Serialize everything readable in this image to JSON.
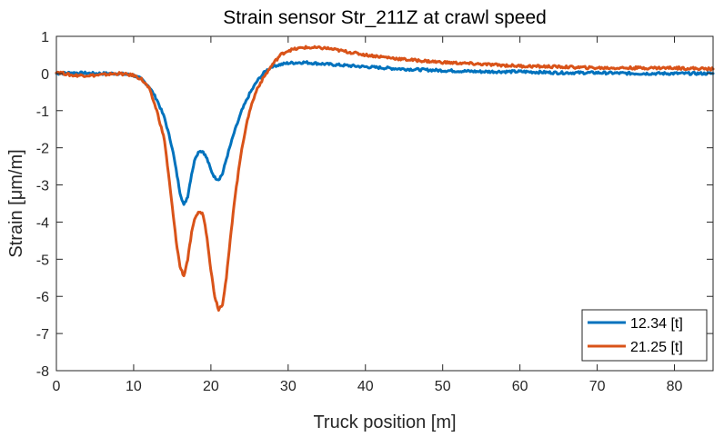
{
  "chart_data": {
    "type": "line",
    "title": "Strain sensor Str_211Z at crawl speed",
    "xlabel": "Truck position [m]",
    "ylabel": "Strain [μm/m]",
    "xlim": [
      0,
      85
    ],
    "ylim": [
      -8,
      1
    ],
    "xticks": [
      0,
      10,
      20,
      30,
      40,
      50,
      60,
      70,
      80
    ],
    "yticks": [
      -8,
      -7,
      -6,
      -5,
      -4,
      -3,
      -2,
      -1,
      0,
      1
    ],
    "grid": false,
    "legend_position": "bottom-right",
    "series": [
      {
        "name": "12.34 [t]",
        "color": "#0072BD",
        "x": [
          0,
          2,
          5,
          8,
          10,
          11,
          12,
          13,
          14,
          15,
          15.5,
          16,
          16.5,
          17,
          17.5,
          18,
          18.5,
          19,
          19.5,
          20,
          20.5,
          21,
          21.5,
          22,
          23,
          24,
          25,
          26,
          27,
          28,
          30,
          32,
          35,
          40,
          45,
          50,
          55,
          60,
          65,
          70,
          75,
          80,
          85
        ],
        "y": [
          0.0,
          0.02,
          0.0,
          0.0,
          -0.05,
          -0.15,
          -0.35,
          -0.7,
          -1.2,
          -2.0,
          -2.6,
          -3.2,
          -3.55,
          -3.3,
          -2.7,
          -2.25,
          -2.08,
          -2.1,
          -2.3,
          -2.6,
          -2.8,
          -2.85,
          -2.7,
          -2.3,
          -1.6,
          -1.0,
          -0.55,
          -0.2,
          0.05,
          0.2,
          0.28,
          0.3,
          0.25,
          0.18,
          0.12,
          0.08,
          0.05,
          0.05,
          0.02,
          0.02,
          0.0,
          0.0,
          0.0
        ]
      },
      {
        "name": "21.25 [t]",
        "color": "#D95319",
        "x": [
          0,
          2,
          5,
          8,
          10,
          11,
          12,
          13,
          14,
          14.5,
          15,
          15.5,
          16,
          16.5,
          17,
          17.5,
          18,
          18.5,
          19,
          19.5,
          20,
          20.5,
          21,
          21.5,
          22,
          22.5,
          23,
          24,
          25,
          26,
          27,
          28,
          29,
          30,
          32,
          35,
          40,
          45,
          50,
          55,
          60,
          65,
          70,
          75,
          80,
          85
        ],
        "y": [
          0.05,
          -0.05,
          -0.05,
          0.0,
          -0.05,
          -0.15,
          -0.4,
          -1.0,
          -1.8,
          -2.7,
          -3.6,
          -4.5,
          -5.2,
          -5.45,
          -5.0,
          -4.3,
          -3.85,
          -3.72,
          -3.8,
          -4.4,
          -5.3,
          -6.0,
          -6.35,
          -6.2,
          -5.5,
          -4.5,
          -3.5,
          -2.0,
          -1.0,
          -0.4,
          -0.05,
          0.25,
          0.5,
          0.62,
          0.7,
          0.68,
          0.5,
          0.38,
          0.3,
          0.25,
          0.2,
          0.18,
          0.15,
          0.15,
          0.15,
          0.12
        ]
      }
    ]
  }
}
